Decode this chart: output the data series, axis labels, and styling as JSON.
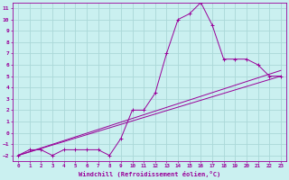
{
  "title": "",
  "xlabel": "Windchill (Refroidissement éolien,°C)",
  "ylabel": "",
  "bg_color": "#caf0f0",
  "grid_color": "#aad8d8",
  "line_color": "#990099",
  "xlim": [
    -0.5,
    23.5
  ],
  "ylim": [
    -2.5,
    11.5
  ],
  "xticks": [
    0,
    1,
    2,
    3,
    4,
    5,
    6,
    7,
    8,
    9,
    10,
    11,
    12,
    13,
    14,
    15,
    16,
    17,
    18,
    19,
    20,
    21,
    22,
    23
  ],
  "yticks": [
    -2,
    -1,
    0,
    1,
    2,
    3,
    4,
    5,
    6,
    7,
    8,
    9,
    10,
    11
  ],
  "line1_x": [
    0,
    1,
    2,
    3,
    4,
    5,
    6,
    7,
    8,
    9,
    10,
    11,
    12,
    13,
    14,
    15,
    16,
    17,
    18,
    19,
    20,
    21,
    22,
    23
  ],
  "line1_y": [
    -2,
    -1.5,
    -1.5,
    -2,
    -1.5,
    -1.5,
    -1.5,
    -1.5,
    -2,
    -0.5,
    2,
    2,
    3.5,
    7,
    10,
    10.5,
    11.5,
    9.5,
    6.5,
    6.5,
    6.5,
    6,
    5,
    5
  ],
  "line2_x": [
    0,
    23
  ],
  "line2_y": [
    -2,
    5.5
  ],
  "line3_x": [
    0,
    23
  ],
  "line3_y": [
    -2,
    5.0
  ]
}
